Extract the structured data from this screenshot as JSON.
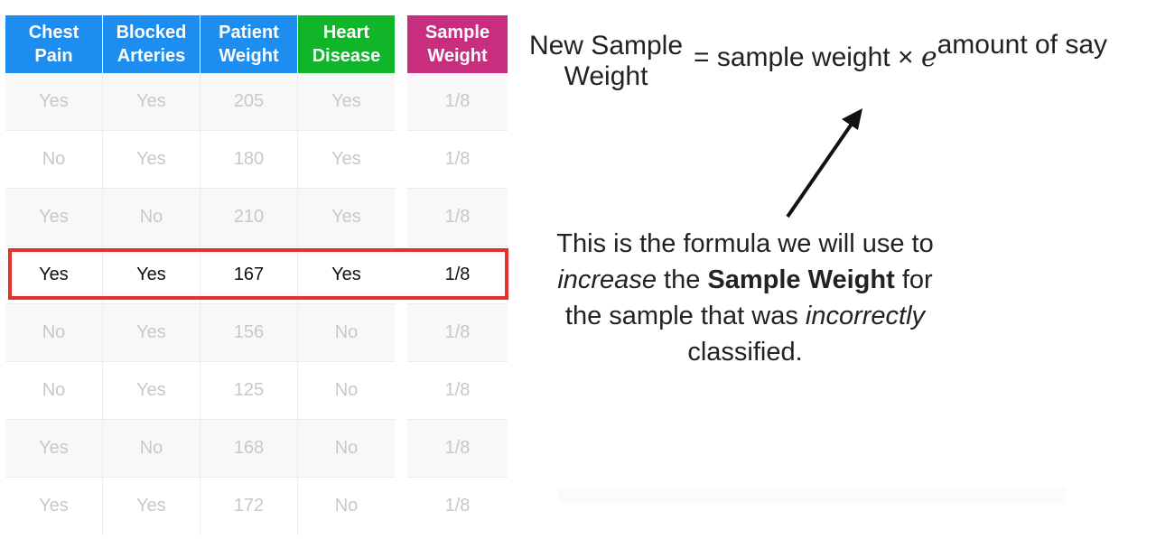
{
  "table": {
    "headers": {
      "chest_pain": [
        "Chest",
        "Pain"
      ],
      "blocked_arteries": [
        "Blocked",
        "Arteries"
      ],
      "patient_weight": [
        "Patient",
        "Weight"
      ],
      "heart_disease": [
        "Heart",
        "Disease"
      ],
      "sample_weight": [
        "Sample",
        "Weight"
      ]
    },
    "rows": [
      [
        "Yes",
        "Yes",
        "205",
        "Yes",
        "1/8"
      ],
      [
        "No",
        "Yes",
        "180",
        "Yes",
        "1/8"
      ],
      [
        "Yes",
        "No",
        "210",
        "Yes",
        "1/8"
      ],
      [
        "Yes",
        "Yes",
        "167",
        "Yes",
        "1/8"
      ],
      [
        "No",
        "Yes",
        "156",
        "No",
        "1/8"
      ],
      [
        "No",
        "Yes",
        "125",
        "No",
        "1/8"
      ],
      [
        "Yes",
        "No",
        "168",
        "No",
        "1/8"
      ],
      [
        "Yes",
        "Yes",
        "172",
        "No",
        "1/8"
      ]
    ],
    "highlighted_row": 3
  },
  "formula": {
    "lhs_line1": "New Sample",
    "lhs_line2": "Weight",
    "rhs": "= sample weight ×",
    "base": "e",
    "exponent": "amount of say"
  },
  "note": {
    "p1": "This is the formula we will use to",
    "p2": "increase",
    "p3": "the",
    "p4": "Sample Weight",
    "p5": "for the sample that was",
    "p6": "incorrectly",
    "p7": "classified."
  },
  "colors": {
    "blue_header": "#1d8ef0",
    "green_header": "#10b52a",
    "magenta_header": "#c72e7d",
    "highlight_red": "#e0332c"
  }
}
